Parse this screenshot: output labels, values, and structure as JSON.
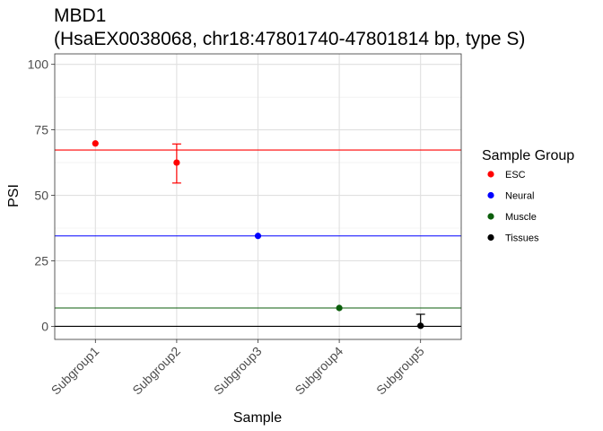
{
  "chart_data": {
    "type": "scatter",
    "title": "MBD1",
    "subtitle": "(HsaEX0038068, chr18:47801740-47801814 bp, type S)",
    "xlabel": "Sample",
    "ylabel": "PSI",
    "ylim": [
      -5,
      104
    ],
    "yticks": [
      0,
      25,
      50,
      75,
      100
    ],
    "categories": [
      "Subgroup1",
      "Subgroup2",
      "Subgroup3",
      "Subgroup4",
      "Subgroup5"
    ],
    "grid": true,
    "legend": {
      "title": "Sample Group",
      "placement": "right"
    },
    "series": [
      {
        "name": "ESC",
        "color": "#ff0000",
        "hline": 67.3,
        "points": [
          {
            "category": "Subgroup1",
            "y": 69.8,
            "err_low": null,
            "err_high": null
          },
          {
            "category": "Subgroup2",
            "y": 62.5,
            "err_low": 54.7,
            "err_high": 69.6
          }
        ]
      },
      {
        "name": "Neural",
        "color": "#0000ff",
        "hline": 34.5,
        "points": [
          {
            "category": "Subgroup3",
            "y": 34.5,
            "err_low": null,
            "err_high": null
          }
        ]
      },
      {
        "name": "Muscle",
        "color": "#0b5e0b",
        "hline": 7.0,
        "points": [
          {
            "category": "Subgroup4",
            "y": 7.0,
            "err_low": null,
            "err_high": null
          }
        ]
      },
      {
        "name": "Tissues",
        "color": "#000000",
        "hline": 0.0,
        "points": [
          {
            "category": "Subgroup5",
            "y": 0.2,
            "err_low": 0.0,
            "err_high": 4.6
          }
        ]
      }
    ]
  }
}
